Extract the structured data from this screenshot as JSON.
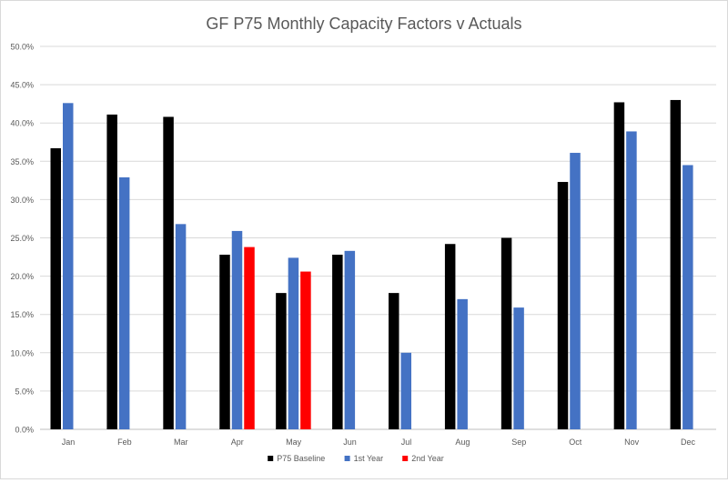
{
  "chart_data": {
    "type": "bar",
    "title": "GF P75 Monthly Capacity Factors v Actuals",
    "xlabel": "",
    "ylabel": "",
    "ylim": [
      0,
      50
    ],
    "yticks": [
      0,
      5,
      10,
      15,
      20,
      25,
      30,
      35,
      40,
      45,
      50
    ],
    "ytick_labels": [
      "0.0%",
      "5.0%",
      "10.0%",
      "15.0%",
      "20.0%",
      "25.0%",
      "30.0%",
      "35.0%",
      "40.0%",
      "45.0%",
      "50.0%"
    ],
    "grid": true,
    "legend_position": "bottom",
    "categories": [
      "Jan",
      "Feb",
      "Mar",
      "Apr",
      "May",
      "Jun",
      "Jul",
      "Aug",
      "Sep",
      "Oct",
      "Nov",
      "Dec"
    ],
    "series": [
      {
        "name": "P75 Baseline",
        "color": "#000000",
        "values": [
          36.7,
          41.1,
          40.8,
          22.8,
          17.8,
          22.8,
          17.8,
          24.2,
          25.0,
          32.3,
          42.7,
          43.0
        ]
      },
      {
        "name": "1st Year",
        "color": "#4472C4",
        "values": [
          42.6,
          32.9,
          26.8,
          25.9,
          22.4,
          23.3,
          10.0,
          17.0,
          15.9,
          36.1,
          38.9,
          34.5
        ]
      },
      {
        "name": "2nd Year",
        "color": "#FF0000",
        "values": [
          null,
          null,
          null,
          23.8,
          20.6,
          null,
          null,
          null,
          null,
          null,
          null,
          null
        ]
      }
    ]
  }
}
